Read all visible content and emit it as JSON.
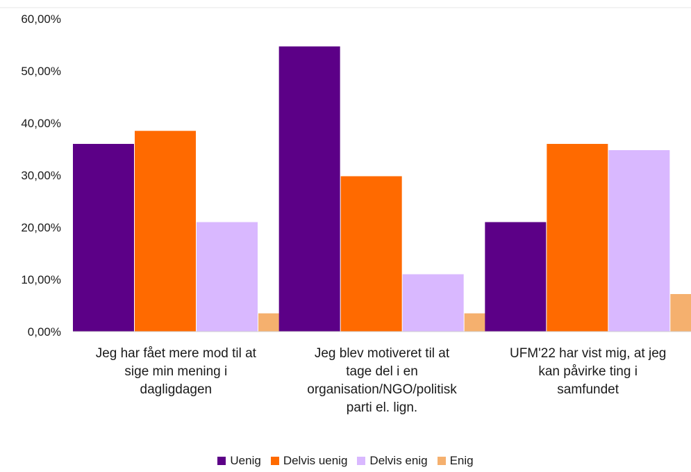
{
  "chart_data": {
    "type": "bar",
    "categories": [
      "Jeg har fået mere mod til at\nsige min mening i\ndagligdagen",
      "Jeg blev motiveret til at\ntage del i en\norganisation/NGO/politisk\nparti el. lign.",
      "UFM'22 har vist mig, at jeg\nkan påvirke ting i\nsamfundet"
    ],
    "series": [
      {
        "name": "Uenig",
        "color": "#5c0087",
        "values": [
          36.0,
          54.7,
          21.0
        ]
      },
      {
        "name": "Delvis uenig",
        "color": "#ff6a00",
        "values": [
          38.5,
          29.8,
          36.0
        ]
      },
      {
        "name": "Delvis enig",
        "color": "#d9b8ff",
        "values": [
          21.0,
          11.0,
          34.8
        ]
      },
      {
        "name": "Enig",
        "color": "#f5b06e",
        "values": [
          3.5,
          3.5,
          7.2
        ]
      }
    ],
    "yticks": [
      "0,00%",
      "10,00%",
      "20,00%",
      "30,00%",
      "40,00%",
      "50,00%",
      "60,00%"
    ],
    "ylim": [
      0,
      60
    ],
    "legend_position": "bottom",
    "grid": false
  }
}
